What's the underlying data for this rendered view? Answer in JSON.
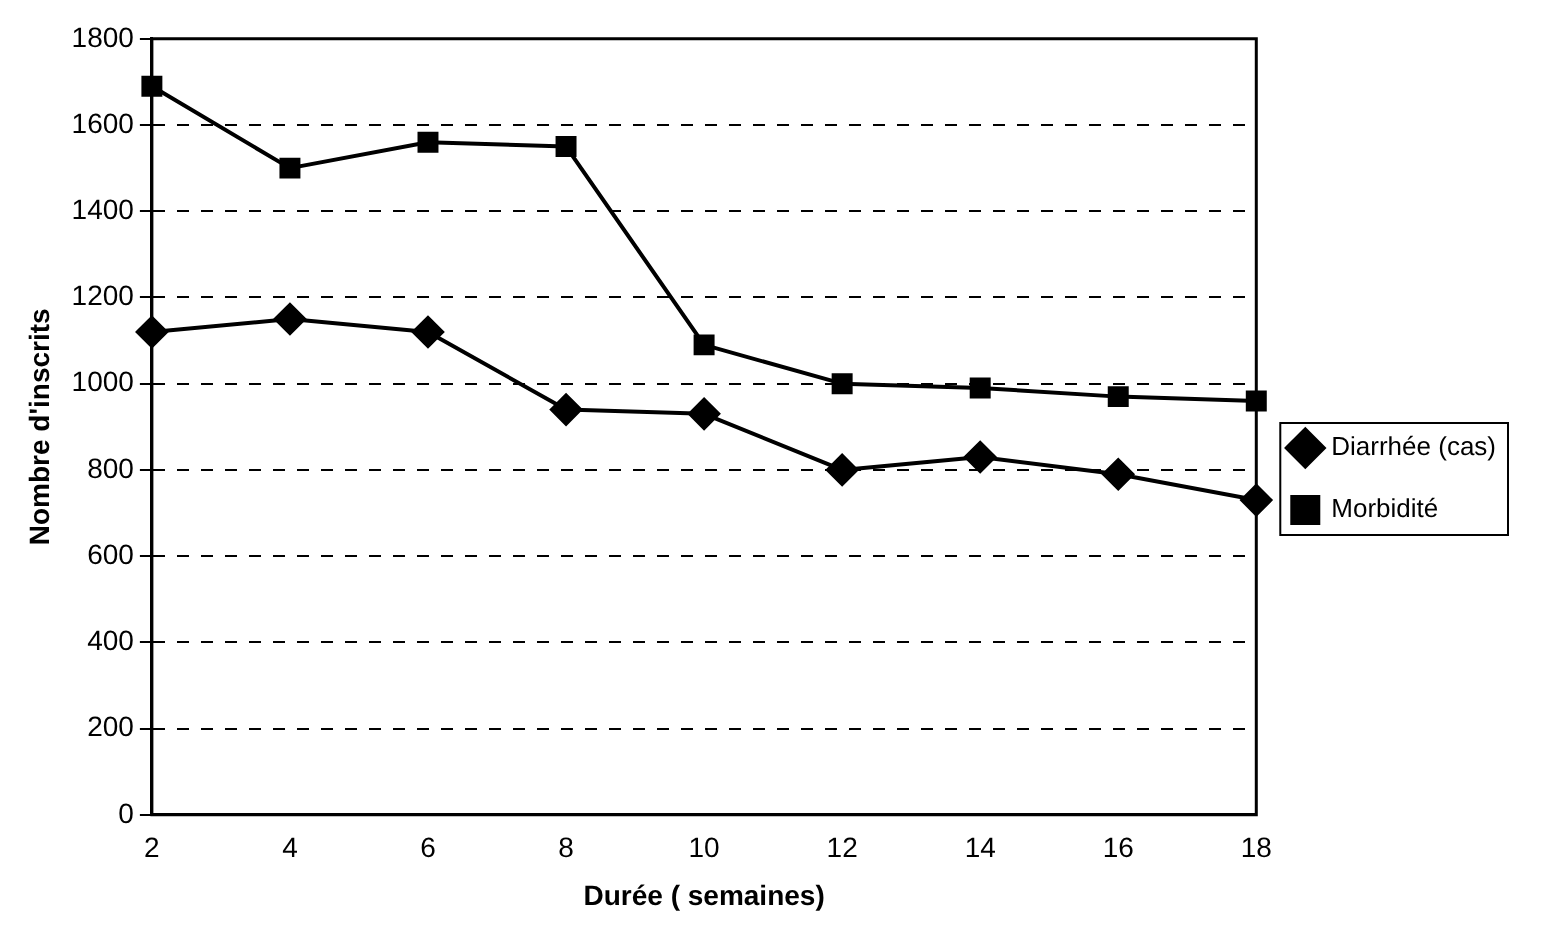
{
  "chart_data": {
    "type": "line",
    "xlabel": "Durée ( semaines)",
    "ylabel": "Nombre d'inscrits",
    "categories": [
      "2",
      "4",
      "6",
      "8",
      "10",
      "12",
      "14",
      "16",
      "18"
    ],
    "series": [
      {
        "name": "Diarrhée (cas)",
        "color": "#000000",
        "marker": "diamond",
        "values": [
          1120,
          1150,
          1120,
          940,
          930,
          800,
          830,
          790,
          730
        ]
      },
      {
        "name": "Morbidité",
        "color": "#000000",
        "marker": "square",
        "values": [
          1690,
          1500,
          1560,
          1550,
          1090,
          1000,
          990,
          970,
          960
        ]
      }
    ],
    "ylim": [
      0,
      1800
    ],
    "yticks": [
      0,
      200,
      400,
      600,
      800,
      1000,
      1200,
      1400,
      1600,
      1800
    ],
    "grid": "y",
    "legend": "right"
  }
}
